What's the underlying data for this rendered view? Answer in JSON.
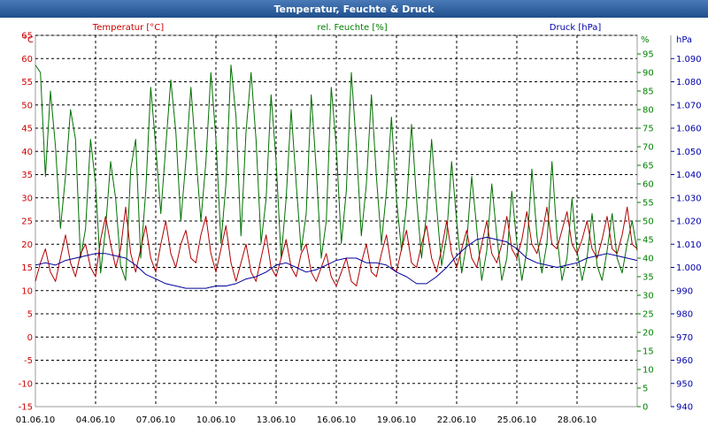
{
  "window": {
    "title": "Temperatur, Feuchte & Druck",
    "title_bar_color": "#2f5f9a"
  },
  "chart_data": {
    "type": "line",
    "title": "Temperatur, Feuchte & Druck",
    "grid": true,
    "x": {
      "labels": [
        "01.06.10",
        "04.06.10",
        "07.06.10",
        "10.06.10",
        "13.06.10",
        "16.06.10",
        "19.06.10",
        "22.06.10",
        "25.06.10",
        "28.06.10"
      ],
      "start_day": 1,
      "end_day": 31,
      "label_step_days": 3
    },
    "axes": {
      "left": {
        "unit": "°C",
        "min": -15,
        "max": 65,
        "ticks": [
          65,
          60,
          55,
          50,
          45,
          40,
          35,
          30,
          25,
          20,
          15,
          10,
          5,
          0,
          -5,
          -10,
          -15
        ],
        "color": "#cc0000"
      },
      "mid": {
        "unit": "%",
        "min": 0,
        "max": 100,
        "ticks": [
          95,
          90,
          85,
          80,
          75,
          70,
          65,
          60,
          55,
          50,
          45,
          40,
          35,
          30,
          25,
          20,
          15,
          10,
          5,
          0
        ],
        "color": "#008000"
      },
      "right": {
        "unit": "hPa",
        "min": 940,
        "max": 1100,
        "ticks": [
          1090,
          1080,
          1070,
          1060,
          1050,
          1040,
          1030,
          1020,
          1010,
          1000,
          990,
          980,
          970,
          960,
          950,
          940
        ],
        "color": "#0000aa"
      }
    },
    "series": [
      {
        "name": "Temperatur [°C]",
        "axis": "left",
        "color": "#b00000",
        "x": [
          1,
          1.25,
          1.5,
          1.75,
          2,
          2.25,
          2.5,
          2.75,
          3,
          3.25,
          3.5,
          3.75,
          4,
          4.25,
          4.5,
          4.75,
          5,
          5.25,
          5.5,
          5.75,
          6,
          6.25,
          6.5,
          6.75,
          7,
          7.25,
          7.5,
          7.75,
          8,
          8.25,
          8.5,
          8.75,
          9,
          9.25,
          9.5,
          9.75,
          10,
          10.25,
          10.5,
          10.75,
          11,
          11.25,
          11.5,
          11.75,
          12,
          12.25,
          12.5,
          12.75,
          13,
          13.25,
          13.5,
          13.75,
          14,
          14.25,
          14.5,
          14.75,
          15,
          15.25,
          15.5,
          15.75,
          16,
          16.25,
          16.5,
          16.75,
          17,
          17.25,
          17.5,
          17.75,
          18,
          18.25,
          18.5,
          18.75,
          19,
          19.25,
          19.5,
          19.75,
          20,
          20.25,
          20.5,
          20.75,
          21,
          21.25,
          21.5,
          21.75,
          22,
          22.25,
          22.5,
          22.75,
          23,
          23.25,
          23.5,
          23.75,
          24,
          24.25,
          24.5,
          24.75,
          25,
          25.25,
          25.5,
          25.75,
          26,
          26.25,
          26.5,
          26.75,
          27,
          27.25,
          27.5,
          27.75,
          28,
          28.25,
          28.5,
          28.75,
          29,
          29.25,
          29.5,
          29.75,
          30,
          30.25,
          30.5,
          30.75,
          31
        ],
        "values": [
          12,
          16,
          19,
          14,
          12,
          17,
          22,
          16,
          13,
          18,
          20,
          15,
          13,
          21,
          26,
          20,
          15,
          19,
          28,
          18,
          14,
          19,
          24,
          17,
          14,
          20,
          25,
          18,
          15,
          20,
          23,
          17,
          16,
          22,
          26,
          18,
          14,
          19,
          24,
          16,
          12,
          16,
          20,
          14,
          12,
          17,
          22,
          15,
          13,
          17,
          21,
          15,
          13,
          18,
          20,
          14,
          12,
          15,
          18,
          13,
          11,
          14,
          17,
          12,
          11,
          16,
          20,
          14,
          13,
          18,
          22,
          15,
          14,
          19,
          23,
          16,
          15,
          20,
          24,
          17,
          14,
          19,
          25,
          18,
          15,
          19,
          23,
          17,
          15,
          20,
          25,
          18,
          16,
          20,
          26,
          19,
          17,
          21,
          27,
          20,
          18,
          22,
          28,
          20,
          19,
          23,
          27,
          20,
          18,
          21,
          25,
          19,
          17,
          21,
          26,
          19,
          18,
          22,
          28,
          20,
          19
        ],
        "pts": []
      },
      {
        "name": "rel. Feuchte [%]",
        "axis": "mid",
        "color": "#007000",
        "x": [
          1,
          1.25,
          1.5,
          1.75,
          2,
          2.25,
          2.5,
          2.75,
          3,
          3.25,
          3.5,
          3.75,
          4,
          4.25,
          4.5,
          4.75,
          5,
          5.25,
          5.5,
          5.75,
          6,
          6.25,
          6.5,
          6.75,
          7,
          7.25,
          7.5,
          7.75,
          8,
          8.25,
          8.5,
          8.75,
          9,
          9.25,
          9.5,
          9.75,
          10,
          10.25,
          10.5,
          10.75,
          11,
          11.25,
          11.5,
          11.75,
          12,
          12.25,
          12.5,
          12.75,
          13,
          13.25,
          13.5,
          13.75,
          14,
          14.25,
          14.5,
          14.75,
          15,
          15.25,
          15.5,
          15.75,
          16,
          16.25,
          16.5,
          16.75,
          17,
          17.25,
          17.5,
          17.75,
          18,
          18.25,
          18.5,
          18.75,
          19,
          19.25,
          19.5,
          19.75,
          20,
          20.25,
          20.5,
          20.75,
          21,
          21.25,
          21.5,
          21.75,
          22,
          22.25,
          22.5,
          22.75,
          23,
          23.25,
          23.5,
          23.75,
          24,
          24.25,
          24.5,
          24.75,
          25,
          25.25,
          25.5,
          25.75,
          26,
          26.25,
          26.5,
          26.75,
          27,
          27.25,
          27.5,
          27.75,
          28,
          28.25,
          28.5,
          28.75,
          29,
          29.25,
          29.5,
          29.75,
          30,
          30.25,
          30.5,
          30.75,
          31
        ],
        "values": [
          92,
          90,
          62,
          85,
          70,
          48,
          62,
          80,
          72,
          40,
          48,
          72,
          60,
          36,
          48,
          66,
          56,
          38,
          34,
          64,
          72,
          40,
          58,
          86,
          70,
          52,
          70,
          88,
          74,
          50,
          66,
          86,
          68,
          50,
          66,
          90,
          72,
          44,
          60,
          92,
          78,
          46,
          74,
          90,
          72,
          44,
          56,
          84,
          66,
          40,
          56,
          80,
          60,
          42,
          52,
          84,
          64,
          40,
          50,
          86,
          70,
          44,
          58,
          90,
          70,
          46,
          60,
          84,
          62,
          44,
          58,
          78,
          56,
          42,
          54,
          76,
          56,
          40,
          52,
          72,
          54,
          38,
          46,
          66,
          50,
          36,
          44,
          62,
          48,
          34,
          42,
          60,
          46,
          34,
          40,
          58,
          44,
          34,
          42,
          64,
          46,
          36,
          44,
          66,
          46,
          34,
          40,
          56,
          42,
          34,
          40,
          52,
          38,
          34,
          42,
          52,
          40,
          36,
          44,
          50,
          42
        ],
        "pts": []
      },
      {
        "name": "Druck [hPa]",
        "axis": "right",
        "color": "#000099",
        "x": [
          1,
          1.5,
          2,
          2.5,
          3,
          3.5,
          4,
          4.5,
          5,
          5.5,
          6,
          6.5,
          7,
          7.5,
          8,
          8.5,
          9,
          9.5,
          10,
          10.5,
          11,
          11.5,
          12,
          12.5,
          13,
          13.5,
          14,
          14.5,
          15,
          15.5,
          16,
          16.5,
          17,
          17.5,
          18,
          18.5,
          19,
          19.5,
          20,
          20.5,
          21,
          21.5,
          22,
          22.5,
          23,
          23.5,
          24,
          24.5,
          25,
          25.5,
          26,
          26.5,
          27,
          27.5,
          28,
          28.5,
          29,
          29.5,
          30,
          30.5,
          31
        ],
        "values": [
          1001,
          1002,
          1001,
          1003,
          1004,
          1005,
          1006,
          1006,
          1005,
          1004,
          1001,
          997,
          995,
          993,
          992,
          991,
          991,
          991,
          992,
          992,
          993,
          995,
          996,
          998,
          1001,
          1002,
          1000,
          998,
          999,
          1001,
          1003,
          1004,
          1004,
          1002,
          1002,
          1001,
          998,
          996,
          993,
          993,
          996,
          1000,
          1005,
          1009,
          1012,
          1013,
          1012,
          1011,
          1008,
          1004,
          1002,
          1001,
          1000,
          1001,
          1002,
          1004,
          1005,
          1006,
          1005,
          1004,
          1003
        ],
        "pts": []
      }
    ]
  }
}
